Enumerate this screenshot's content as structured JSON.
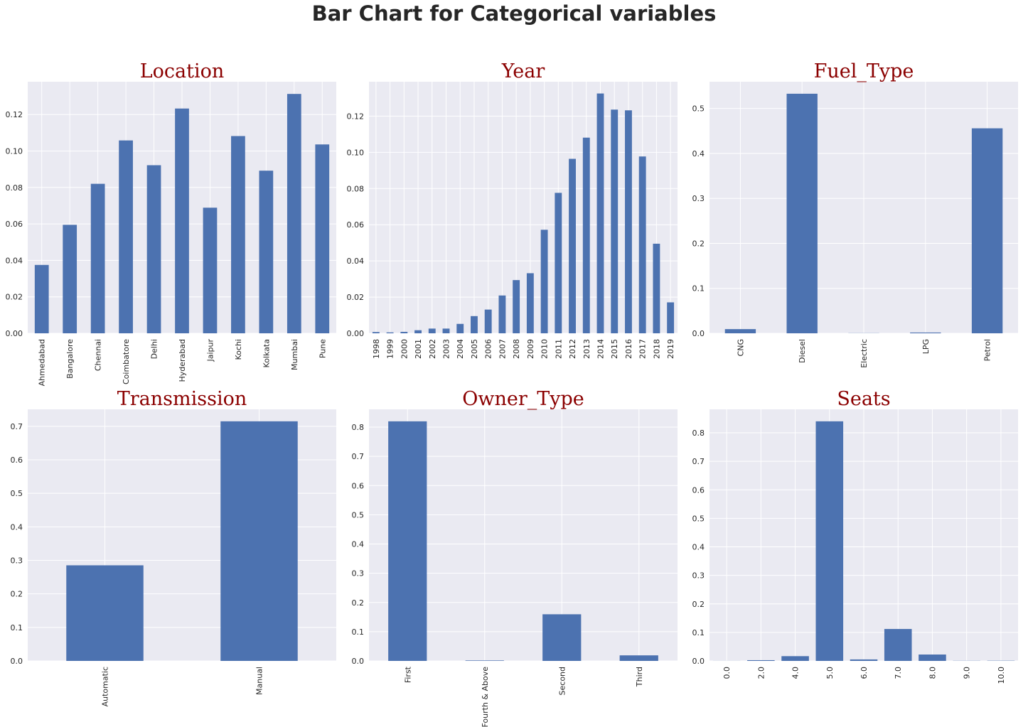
{
  "figure": {
    "title": "Bar Chart for Categorical variables",
    "bar_color": "#4c72b0",
    "panel_bg": "#eaeaf2",
    "grid_color": "#ffffff",
    "title_color": "#8b0000"
  },
  "chart_data": [
    {
      "type": "bar",
      "title": "Location",
      "categories": [
        "Ahmedabad",
        "Bangalore",
        "Chennai",
        "Coimbatore",
        "Delhi",
        "Hyderabad",
        "Jaipur",
        "Kochi",
        "Kolkata",
        "Mumbai",
        "Pune"
      ],
      "values": [
        0.0375,
        0.0595,
        0.082,
        0.1058,
        0.0922,
        0.1233,
        0.0689,
        0.1082,
        0.0892,
        0.1313,
        0.1036
      ],
      "ylim": [
        0,
        0.138
      ],
      "yticks": [
        0.0,
        0.02,
        0.04,
        0.06,
        0.08,
        0.1,
        0.12
      ],
      "ytick_labels": [
        "0.00",
        "0.02",
        "0.04",
        "0.06",
        "0.08",
        "0.10",
        "0.12"
      ],
      "grid": true,
      "xlabel": "",
      "ylabel": ""
    },
    {
      "type": "bar",
      "title": "Year",
      "categories": [
        "1998",
        "1999",
        "2000",
        "2001",
        "2002",
        "2003",
        "2004",
        "2005",
        "2006",
        "2007",
        "2008",
        "2009",
        "2010",
        "2011",
        "2012",
        "2013",
        "2014",
        "2015",
        "2016",
        "2017",
        "2018",
        "2019"
      ],
      "values": [
        0.0007,
        0.0005,
        0.0008,
        0.0017,
        0.0026,
        0.0026,
        0.0052,
        0.0095,
        0.0131,
        0.0209,
        0.0294,
        0.0332,
        0.0572,
        0.0776,
        0.0964,
        0.1081,
        0.1325,
        0.1236,
        0.1232,
        0.0977,
        0.0495,
        0.0171
      ],
      "ylim": [
        0,
        0.139
      ],
      "yticks": [
        0.0,
        0.02,
        0.04,
        0.06,
        0.08,
        0.1,
        0.12
      ],
      "ytick_labels": [
        "0.00",
        "0.02",
        "0.04",
        "0.06",
        "0.08",
        "0.10",
        "0.12"
      ],
      "grid": true,
      "xlabel": "",
      "ylabel": ""
    },
    {
      "type": "bar",
      "title": "Fuel_Type",
      "categories": [
        "CNG",
        "Diesel",
        "Electric",
        "LPG",
        "Petrol"
      ],
      "values": [
        0.0093,
        0.5328,
        0.0003,
        0.0017,
        0.4559
      ],
      "ylim": [
        0,
        0.5595
      ],
      "yticks": [
        0.0,
        0.1,
        0.2,
        0.3,
        0.4,
        0.5
      ],
      "ytick_labels": [
        "0.0",
        "0.1",
        "0.2",
        "0.3",
        "0.4",
        "0.5"
      ],
      "grid": true,
      "xlabel": "",
      "ylabel": ""
    },
    {
      "type": "bar",
      "title": "Transmission",
      "categories": [
        "Automatic",
        "Manual"
      ],
      "values": [
        0.2852,
        0.7148
      ],
      "ylim": [
        0,
        0.7505
      ],
      "yticks": [
        0.0,
        0.1,
        0.2,
        0.3,
        0.4,
        0.5,
        0.6,
        0.7
      ],
      "ytick_labels": [
        "0.0",
        "0.1",
        "0.2",
        "0.3",
        "0.4",
        "0.5",
        "0.6",
        "0.7"
      ],
      "grid": true,
      "xlabel": "",
      "ylabel": ""
    },
    {
      "type": "bar",
      "title": "Owner_Type",
      "categories": [
        "First",
        "Fourth & Above",
        "Second",
        "Third"
      ],
      "values": [
        0.8198,
        0.0016,
        0.1596,
        0.019
      ],
      "ylim": [
        0,
        0.8608
      ],
      "yticks": [
        0.0,
        0.1,
        0.2,
        0.3,
        0.4,
        0.5,
        0.6,
        0.7,
        0.8
      ],
      "ytick_labels": [
        "0.0",
        "0.1",
        "0.2",
        "0.3",
        "0.4",
        "0.5",
        "0.6",
        "0.7",
        "0.8"
      ],
      "grid": true,
      "xlabel": "",
      "ylabel": ""
    },
    {
      "type": "bar",
      "title": "Seats",
      "categories": [
        "0.0",
        "2.0",
        "4.0",
        "5.0",
        "6.0",
        "7.0",
        "8.0",
        "9.0",
        "10.0"
      ],
      "values": [
        0.0002,
        0.0026,
        0.0167,
        0.8403,
        0.0052,
        0.112,
        0.0224,
        0.0005,
        0.0008
      ],
      "ylim": [
        0,
        0.8823
      ],
      "yticks": [
        0.0,
        0.1,
        0.2,
        0.3,
        0.4,
        0.5,
        0.6,
        0.7,
        0.8
      ],
      "ytick_labels": [
        "0.0",
        "0.1",
        "0.2",
        "0.3",
        "0.4",
        "0.5",
        "0.6",
        "0.7",
        "0.8"
      ],
      "grid": true,
      "xlabel": "",
      "ylabel": ""
    }
  ]
}
